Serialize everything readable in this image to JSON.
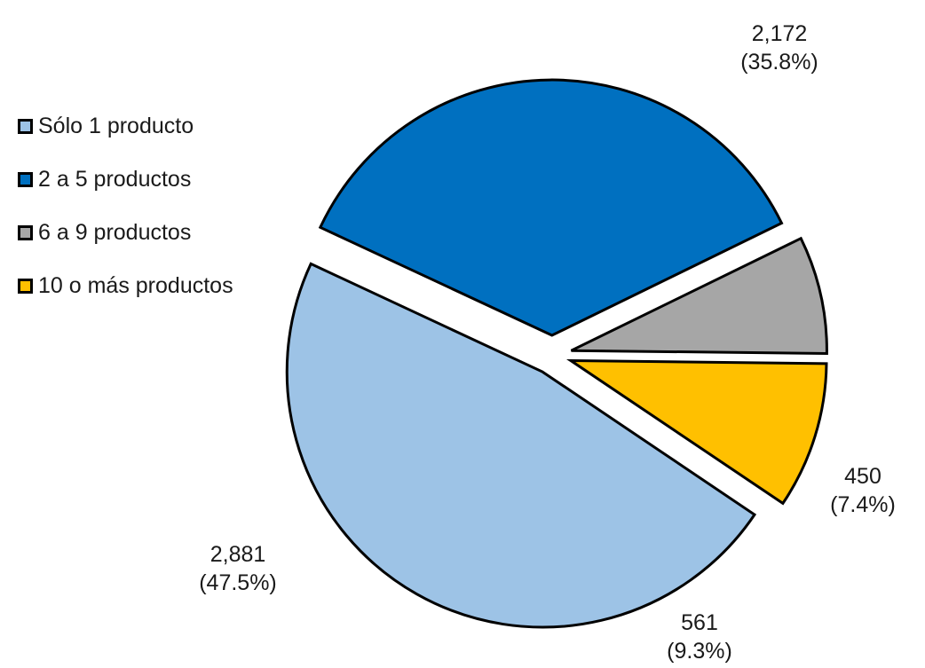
{
  "chart_data": {
    "type": "pie",
    "title": "",
    "categories": [
      "Sólo 1 producto",
      "2 a 5 productos",
      "6 a 9 productos",
      "10 o más productos"
    ],
    "values": [
      2881,
      2172,
      450,
      561
    ],
    "value_labels": [
      "2,881",
      "2,172",
      "450",
      "561"
    ],
    "percent_labels": [
      "(47.5%)",
      "(35.8%)",
      "(7.4%)",
      "(9.3%)"
    ],
    "colors": [
      "#9DC3E6",
      "#0070C0",
      "#A6A6A6",
      "#FFC000"
    ],
    "exploded": true,
    "legend_position": "top-left"
  }
}
